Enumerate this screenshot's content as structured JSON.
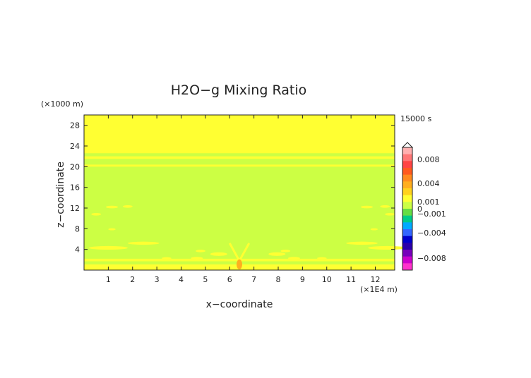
{
  "chart_data": {
    "type": "heatmap",
    "title": "H2O−g Mixing Ratio",
    "time_label": "15000 s",
    "x_scale_label": "(×1E4 m)",
    "y_scale_label": "(×1000 m)",
    "xlabel": "x−coordinate",
    "ylabel": "z−coordinate",
    "xlim": [
      0,
      12.8
    ],
    "ylim": [
      0,
      30
    ],
    "x_ticks": [
      "1",
      "2",
      "3",
      "4",
      "5",
      "6",
      "7",
      "8",
      "9",
      "10",
      "11",
      "12"
    ],
    "y_ticks": [
      "4",
      "8",
      "12",
      "16",
      "20",
      "24",
      "28"
    ],
    "colorbar": {
      "labels": [
        "0.008",
        "0.004",
        "0.001",
        "0",
        "−0.001",
        "−0.004",
        "−0.008"
      ],
      "colors": [
        "#ffb0b0",
        "#ff7777",
        "#ff4444",
        "#ff5a1e",
        "#ff8a1e",
        "#ffae1e",
        "#ffd21e",
        "#ffff32",
        "#ccff44",
        "#66dd44",
        "#00cc88",
        "#00aaff",
        "#3366ff",
        "#0000cc",
        "#2a00aa",
        "#7700bb",
        "#cc00cc",
        "#ff33cc"
      ]
    },
    "field": {
      "background": "#ccff44",
      "upper_layer": "#ffff32",
      "surface_layer": "#ffff32",
      "peak_color": "#ffae1e"
    }
  },
  "colors": {
    "frame": "#222222",
    "text": "#222222"
  }
}
